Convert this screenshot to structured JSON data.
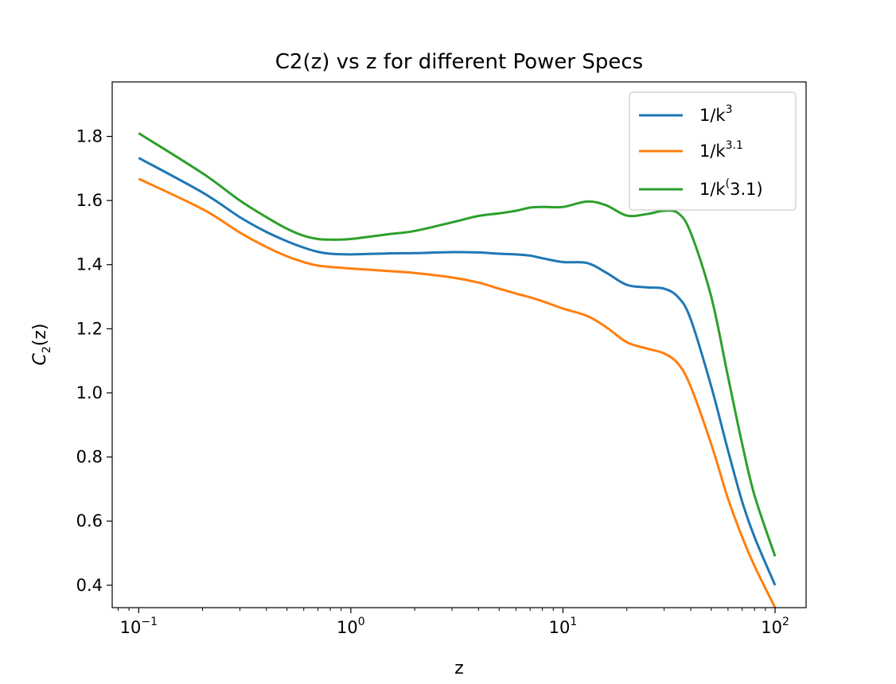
{
  "chart_data": {
    "type": "line",
    "title": "C2(z) vs z for different Power Specs",
    "xlabel": "z",
    "ylabel": {
      "base": "C",
      "sub": "2",
      "arg": "(z)"
    },
    "x_scale": "log",
    "xlim": [
      0.075,
      140
    ],
    "ylim": [
      0.33,
      1.97
    ],
    "x_ticks": [
      {
        "value": 0.1,
        "base": "10",
        "exp": "−1"
      },
      {
        "value": 1,
        "base": "10",
        "exp": "0"
      },
      {
        "value": 10,
        "base": "10",
        "exp": "1"
      },
      {
        "value": 100,
        "base": "10",
        "exp": "2"
      }
    ],
    "y_ticks": [
      {
        "value": 0.4,
        "label": "0.4"
      },
      {
        "value": 0.6,
        "label": "0.6"
      },
      {
        "value": 0.8,
        "label": "0.8"
      },
      {
        "value": 1.0,
        "label": "1.0"
      },
      {
        "value": 1.2,
        "label": "1.2"
      },
      {
        "value": 1.4,
        "label": "1.4"
      },
      {
        "value": 1.6,
        "label": "1.6"
      },
      {
        "value": 1.8,
        "label": "1.8"
      }
    ],
    "grid": false,
    "legend_position": "top-right",
    "x": [
      0.1,
      0.2,
      0.3,
      0.4,
      0.5,
      0.6,
      0.7,
      0.8,
      1,
      1.5,
      2,
      3,
      4,
      5,
      6,
      7,
      8,
      10,
      13,
      16,
      20,
      25,
      30,
      35,
      40,
      50,
      60,
      70,
      80,
      100
    ],
    "series": [
      {
        "legend": {
          "base": "1/k",
          "sup": "3"
        },
        "color": "#1f77b4",
        "values": [
          1.733,
          1.625,
          1.548,
          1.502,
          1.473,
          1.453,
          1.44,
          1.434,
          1.432,
          1.435,
          1.436,
          1.439,
          1.438,
          1.434,
          1.432,
          1.428,
          1.42,
          1.408,
          1.405,
          1.375,
          1.337,
          1.329,
          1.325,
          1.298,
          1.23,
          1.02,
          0.82,
          0.66,
          0.55,
          0.4
        ]
      },
      {
        "legend": {
          "base": "1/k",
          "sup": "3.1"
        },
        "color": "#ff7f0e",
        "values": [
          1.668,
          1.573,
          1.5,
          1.455,
          1.426,
          1.408,
          1.397,
          1.393,
          1.388,
          1.38,
          1.374,
          1.36,
          1.344,
          1.325,
          1.31,
          1.298,
          1.286,
          1.263,
          1.24,
          1.205,
          1.158,
          1.138,
          1.123,
          1.09,
          1.02,
          0.84,
          0.67,
          0.55,
          0.46,
          0.33
        ]
      },
      {
        "legend": {
          "base": "1/k",
          "sup": "(",
          "tail": "3.1)"
        },
        "color": "#2ca02c",
        "values": [
          1.81,
          1.685,
          1.6,
          1.548,
          1.512,
          1.49,
          1.48,
          1.478,
          1.48,
          1.495,
          1.505,
          1.532,
          1.552,
          1.56,
          1.568,
          1.578,
          1.58,
          1.58,
          1.597,
          1.585,
          1.553,
          1.558,
          1.568,
          1.56,
          1.5,
          1.3,
          1.05,
          0.84,
          0.68,
          0.49
        ]
      }
    ]
  }
}
